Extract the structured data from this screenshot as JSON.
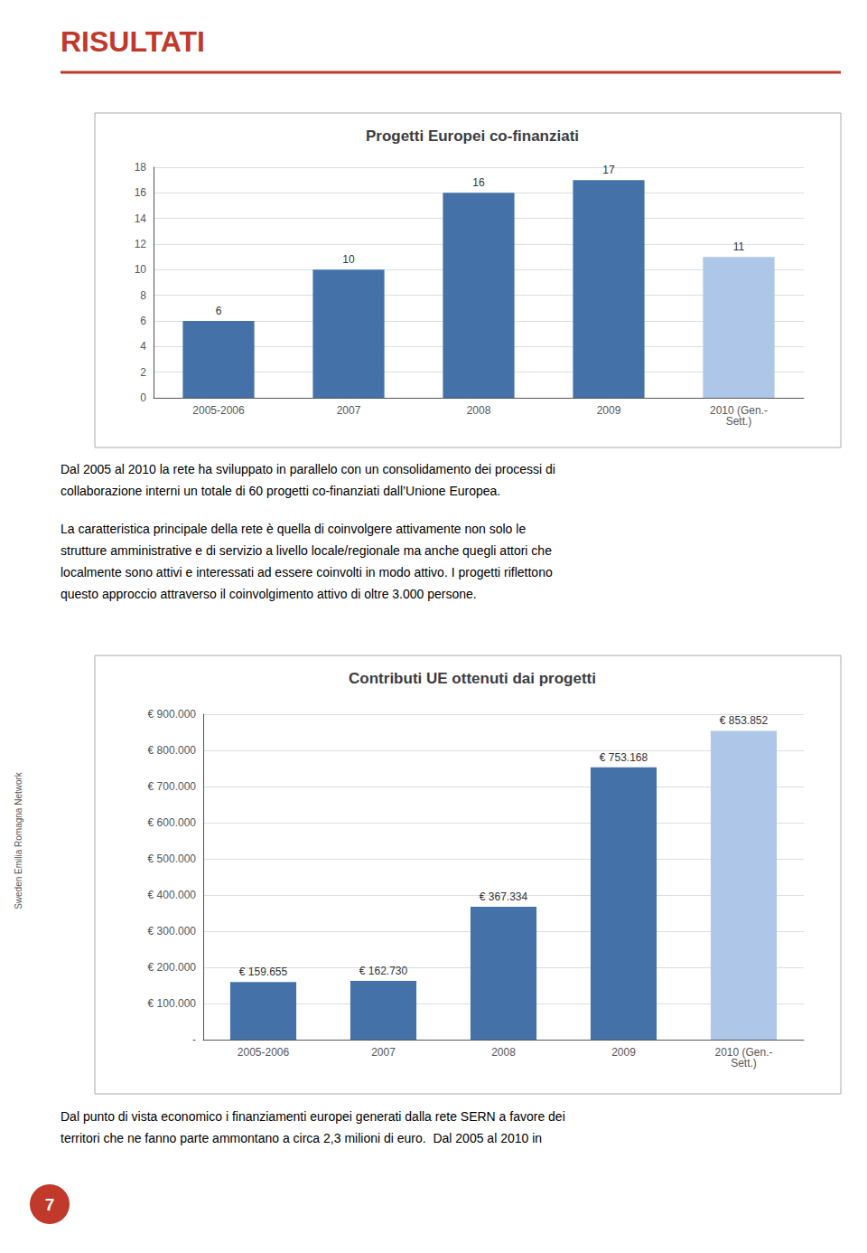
{
  "page": {
    "title": {
      "text": "RISULTATI",
      "color": "#c0392b"
    },
    "sidebar": "Sweden Emilia Romagna Network",
    "page_number": {
      "text": "7",
      "color": "#c0392b"
    },
    "paragraphs_before": [
      [
        "Dal 2005 al 2010 la rete ha sviluppato in parallelo con un consolidamento dei processi di",
        "collaborazione interni un totale di 60 progetti co-finanziati dall’Unione Europea."
      ],
      [
        "La caratteristica principale della rete è quella di coinvolgere attivamente non solo le",
        "strutture amministrative e di servizio a livello locale/regionale ma anche quegli attori che",
        "localmente sono attivi e interessati ad essere coinvolti in modo attivo. I progetti riflettono",
        "questo approccio attraverso il coinvolgimento attivo di oltre 3.000 persone."
      ]
    ],
    "paragraphs_after": [
      [
        "Dal punto di vista economico i finanziamenti europei generati dalla rete SERN a favore dei",
        "territori che ne fanno parte ammontano a circa 2,3 milioni di euro.  Dal 2005 al 2010 in"
      ]
    ]
  },
  "chart_data": [
    {
      "type": "bar",
      "title": "Progetti Europei co-finanziati",
      "categories": [
        "2005-2006",
        "2007",
        "2008",
        "2009",
        "2010 (Gen.-\nSett.)"
      ],
      "values": [
        6,
        10,
        16,
        17,
        11
      ],
      "colors": [
        "#4472a8",
        "#4472a8",
        "#4472a8",
        "#4472a8",
        "#aec6e8"
      ],
      "ylim": [
        0,
        18
      ],
      "yticks": [
        0,
        2,
        4,
        6,
        8,
        10,
        12,
        14,
        16,
        18
      ],
      "grid": true,
      "data_labels": true
    },
    {
      "type": "bar",
      "title": "Contributi UE ottenuti dai progetti",
      "categories": [
        "2005-2006",
        "2007",
        "2008",
        "2009",
        "2010 (Gen.-\nSett.)"
      ],
      "values": [
        159655,
        162730,
        367334,
        753168,
        853852
      ],
      "value_labels": [
        "€ 159.655",
        "€ 162.730",
        "€ 367.334",
        "€ 753.168",
        "€ 853.852"
      ],
      "colors": [
        "#4472a8",
        "#4472a8",
        "#4472a8",
        "#4472a8",
        "#aec6e8"
      ],
      "ylim": [
        0,
        900000
      ],
      "yticks": [
        {
          "value": 0,
          "label": "-"
        },
        {
          "value": 100000,
          "label": "€ 100.000"
        },
        {
          "value": 200000,
          "label": "€ 200.000"
        },
        {
          "value": 300000,
          "label": "€ 300.000"
        },
        {
          "value": 400000,
          "label": "€ 400.000"
        },
        {
          "value": 500000,
          "label": "€ 500.000"
        },
        {
          "value": 600000,
          "label": "€ 600.000"
        },
        {
          "value": 700000,
          "label": "€ 700.000"
        },
        {
          "value": 800000,
          "label": "€ 800.000"
        },
        {
          "value": 900000,
          "label": "€ 900.000"
        }
      ],
      "grid": true,
      "data_labels": true
    }
  ]
}
